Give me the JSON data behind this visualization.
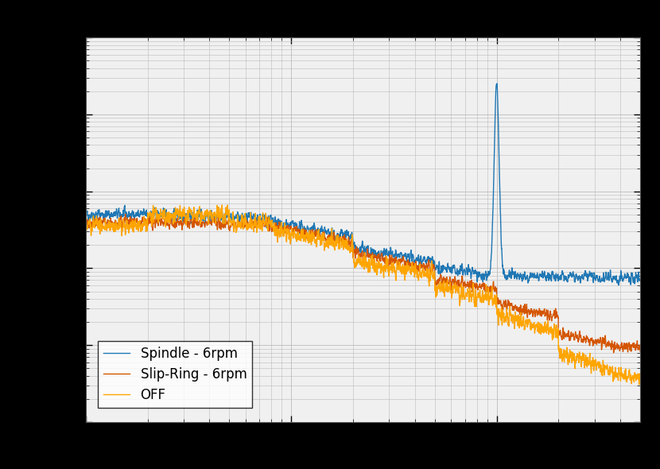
{
  "colors": {
    "spindle": "#1f77b4",
    "slipring": "#d45500",
    "off": "#ffa500"
  },
  "legend_labels": [
    "Spindle - 6rpm",
    "Slip-Ring - 6rpm",
    "OFF"
  ],
  "background_color": "#000000",
  "plot_bg_color": "#f0f0f0",
  "grid_color": "#bbbbbb",
  "figsize": [
    8.3,
    5.9
  ],
  "dpi": 100,
  "xlim": [
    1,
    500
  ],
  "ylim": [
    1e-09,
    0.0001
  ],
  "legend_fontsize": 12,
  "line_width": 1.0
}
